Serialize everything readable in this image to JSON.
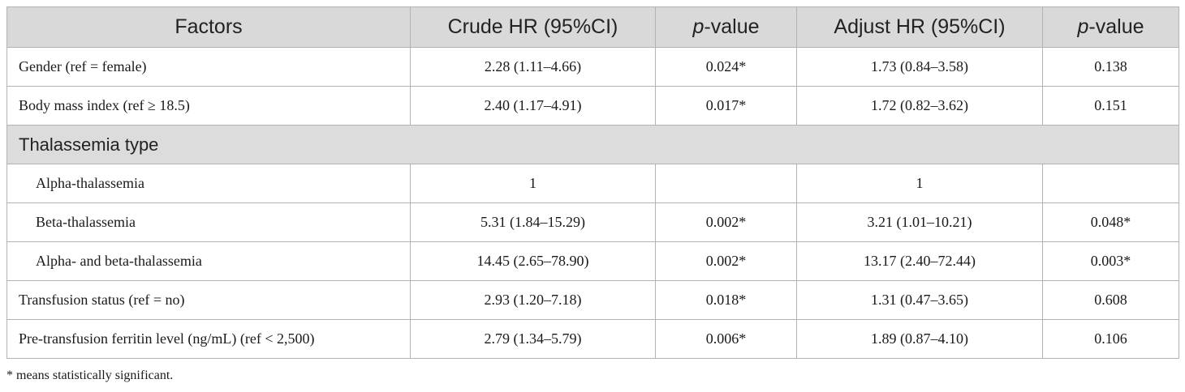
{
  "table": {
    "headers": {
      "factors": "Factors",
      "crude_hr": "Crude HR (95%CI)",
      "pvalue_italic": "p",
      "pvalue_rest": "-value",
      "adjust_hr": "Adjust HR (95%CI)",
      "pvalue2_italic": "p",
      "pvalue2_rest": "-value"
    },
    "rows": [
      {
        "factor": "Gender (ref = female)",
        "crude_hr": "2.28 (1.11–4.66)",
        "crude_p": "0.024*",
        "adjust_hr": "1.73 (0.84–3.58)",
        "adjust_p": "0.138"
      },
      {
        "factor": "Body mass index (ref ≥ 18.5)",
        "crude_hr": "2.40 (1.17–4.91)",
        "crude_p": "0.017*",
        "adjust_hr": "1.72 (0.82–3.62)",
        "adjust_p": "0.151"
      }
    ],
    "section": "Thalassemia type",
    "sub_rows": [
      {
        "factor": "Alpha-thalassemia",
        "crude_hr": "1",
        "crude_p": "",
        "adjust_hr": "1",
        "adjust_p": ""
      },
      {
        "factor": "Beta-thalassemia",
        "crude_hr": "5.31 (1.84–15.29)",
        "crude_p": "0.002*",
        "adjust_hr": "3.21 (1.01–10.21)",
        "adjust_p": "0.048*"
      },
      {
        "factor": "Alpha- and beta-thalassemia",
        "crude_hr": "14.45 (2.65–78.90)",
        "crude_p": "0.002*",
        "adjust_hr": "13.17 (2.40–72.44)",
        "adjust_p": "0.003*"
      }
    ],
    "tail_rows": [
      {
        "factor": "Transfusion status (ref = no)",
        "crude_hr": "2.93 (1.20–7.18)",
        "crude_p": "0.018*",
        "adjust_hr": "1.31 (0.47–3.65)",
        "adjust_p": "0.608"
      },
      {
        "factor": "Pre-transfusion ferritin level (ng/mL) (ref < 2,500)",
        "crude_hr": "2.79 (1.34–5.79)",
        "crude_p": "0.006*",
        "adjust_hr": "1.89 (0.87–4.10)",
        "adjust_p": "0.106"
      }
    ]
  },
  "footnote": "* means statistically significant."
}
